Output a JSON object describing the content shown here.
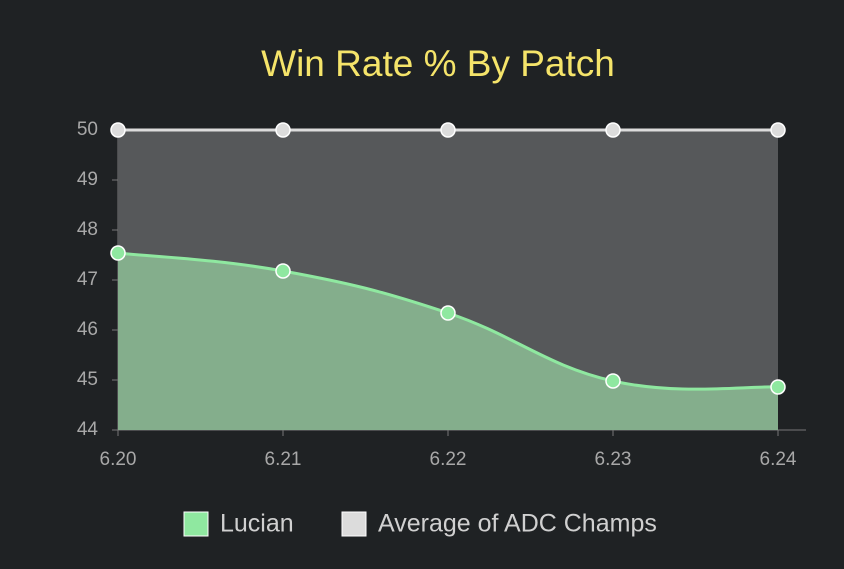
{
  "chart_data": {
    "type": "line",
    "title": "Win Rate % By Patch",
    "categories": [
      "6.20",
      "6.21",
      "6.22",
      "6.23",
      "6.24"
    ],
    "series": [
      {
        "name": "Lucian",
        "color": "#8fe8a0",
        "fill": "#84ae8c",
        "values": [
          47.54,
          47.18,
          46.34,
          44.98,
          44.86
        ]
      },
      {
        "name": "Average of ADC Champs",
        "color": "#dcdcdc",
        "fill": "#56585a",
        "values": [
          50,
          50,
          50,
          50,
          50
        ]
      }
    ],
    "ylim": [
      44,
      50
    ],
    "yticks": [
      44,
      45,
      46,
      47,
      48,
      49,
      50
    ],
    "legend": "bottom"
  }
}
